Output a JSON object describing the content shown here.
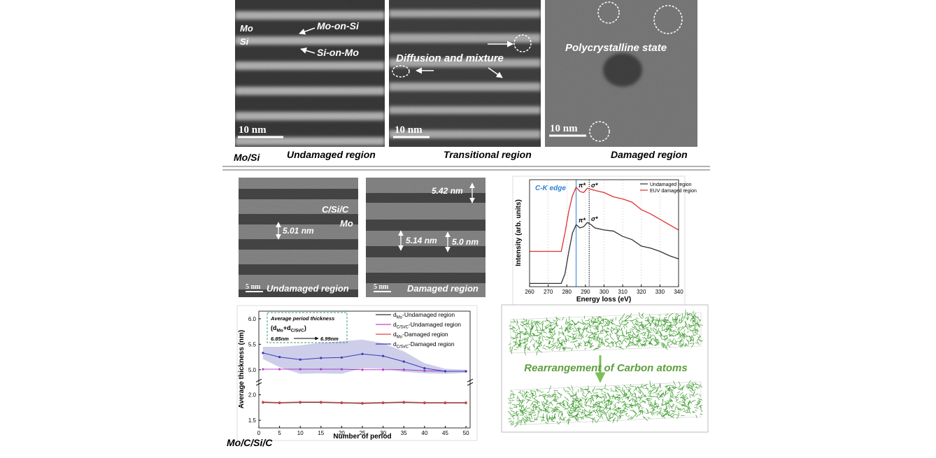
{
  "figure": {
    "top": {
      "label": "Mo/Si",
      "panels": [
        {
          "caption": "Undamaged region",
          "scale": "10 nm",
          "labels": [
            "Mo",
            "Si",
            "Mo-on-Si",
            "Si-on-Mo"
          ]
        },
        {
          "caption": "Transitional region",
          "scale": "10 nm",
          "labels": [
            "Diffusion and mixture"
          ]
        },
        {
          "caption": "Damaged region",
          "scale": "10 nm",
          "labels": [
            "Polycrystalline state"
          ]
        }
      ]
    },
    "bottom": {
      "label": "Mo/C/Si/C",
      "panels": [
        {
          "caption": "Undamaged region",
          "scale": "5 nm",
          "labels": [
            "C/Si/C",
            "Mo",
            "5.01 nm"
          ]
        },
        {
          "caption": "Damaged region",
          "scale": "5 nm",
          "labels": [
            "5.42 nm",
            "5.14 nm",
            "5.0 nm"
          ]
        }
      ],
      "simulation": "Rearrangement of Carbon atoms"
    }
  },
  "chart_data": [
    {
      "type": "line",
      "x_label": "Energy loss (eV)",
      "y_label": "Intensity (arb. units)",
      "x": [
        260,
        270,
        277,
        279,
        281,
        283,
        285,
        287,
        289,
        291,
        293,
        295,
        300,
        305,
        310,
        315,
        320,
        325,
        330,
        335,
        340
      ],
      "series": [
        {
          "name": "Undamaged region",
          "color": "#333333",
          "values": [
            0.03,
            0.03,
            0.03,
            0.12,
            0.32,
            0.5,
            0.58,
            0.55,
            0.56,
            0.6,
            0.58,
            0.55,
            0.53,
            0.52,
            0.47,
            0.44,
            0.38,
            0.36,
            0.33,
            0.29,
            0.26
          ]
        },
        {
          "name": "EUV damaged region",
          "color": "#e03030",
          "values": [
            0.33,
            0.33,
            0.33,
            0.5,
            0.7,
            0.85,
            0.93,
            0.89,
            0.88,
            0.92,
            0.91,
            0.9,
            0.88,
            0.84,
            0.82,
            0.79,
            0.72,
            0.68,
            0.63,
            0.58,
            0.53
          ]
        }
      ],
      "xlim": [
        260,
        340
      ],
      "ylim": [
        0,
        1
      ],
      "xticks": [
        260,
        270,
        280,
        290,
        300,
        310,
        320,
        330,
        340
      ],
      "grid": true,
      "vlines": [
        {
          "x": 285,
          "color": "#2f7fd0"
        },
        {
          "x": 292,
          "color": "#000000"
        }
      ],
      "annotations": [
        "C-K edge",
        "π*",
        "σ*",
        "π*",
        "σ*"
      ]
    },
    {
      "type": "line",
      "x_label": "Number of period",
      "y_label": "Average thickness (nm)",
      "x": [
        1,
        5,
        10,
        15,
        20,
        25,
        30,
        35,
        40,
        45,
        50
      ],
      "series": [
        {
          "name": [
            "d",
            "Mo",
            "-Undamaged region"
          ],
          "color": "#333333",
          "values": [
            1.85,
            1.84,
            1.85,
            1.85,
            1.84,
            1.83,
            1.84,
            1.85,
            1.84,
            1.84,
            1.84
          ]
        },
        {
          "name": [
            "d",
            "C/Si/C",
            "-Undamaged region"
          ],
          "color": "#c040d0",
          "values": [
            5.01,
            5.01,
            5.01,
            5.01,
            5.01,
            5.0,
            5.0,
            5.0,
            4.98,
            4.97,
            4.97
          ]
        },
        {
          "name": [
            "d",
            "Mo",
            "-Damaged region"
          ],
          "color": "#e04040",
          "values": [
            1.86,
            1.85,
            1.86,
            1.86,
            1.85,
            1.84,
            1.85,
            1.86,
            1.85,
            1.85,
            1.85
          ]
        },
        {
          "name": [
            "d",
            "C/Si/C",
            "-Damaged region"
          ],
          "color": "#3a3ab0",
          "values": [
            5.33,
            5.25,
            5.2,
            5.23,
            5.24,
            5.31,
            5.27,
            5.16,
            5.03,
            4.97,
            4.97
          ],
          "errors": [
            0.12,
            0.2,
            0.28,
            0.3,
            0.32,
            0.28,
            0.25,
            0.2,
            0.1,
            0.05,
            0.03
          ]
        }
      ],
      "xlim": [
        0,
        51
      ],
      "ylim": [
        1.35,
        6.15
      ],
      "ybreak": [
        2.15,
        4.85
      ],
      "xticks": [
        0,
        5,
        10,
        15,
        20,
        25,
        30,
        35,
        40,
        45,
        50
      ],
      "yticks": [
        {
          "value": 1.5,
          "label": "1.5"
        },
        {
          "value": 2,
          "label": "2.0"
        },
        {
          "value": 5,
          "label": "5.0"
        },
        {
          "value": 5.5,
          "label": "5.5"
        },
        {
          "value": 6,
          "label": "6.0"
        }
      ],
      "grid": false,
      "inset": {
        "title": "Average period thickness",
        "formula": [
          "(d",
          "Mo",
          "+d",
          "C/Si/C",
          ")"
        ],
        "from": "6.85nm",
        "to": "6.99nm"
      }
    }
  ]
}
